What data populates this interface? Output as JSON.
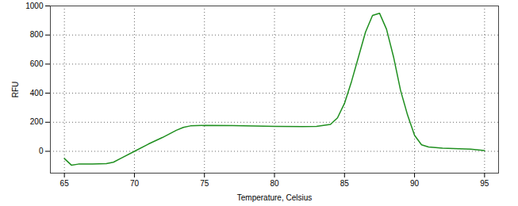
{
  "chart_data": {
    "type": "line",
    "x_label": "Temperature, Celsius",
    "y_label": "RFU",
    "x": [
      65,
      65.5,
      66,
      67,
      68,
      68.5,
      69,
      70,
      71,
      72,
      73,
      73.5,
      74,
      75,
      77,
      80,
      82,
      83,
      84,
      84.5,
      85,
      85.5,
      86,
      86.5,
      87,
      87.5,
      88,
      88.5,
      89,
      89.5,
      90,
      90.5,
      91,
      92,
      94,
      95
    ],
    "values": [
      -50,
      -95,
      -88,
      -88,
      -85,
      -75,
      -50,
      0,
      50,
      95,
      145,
      165,
      175,
      178,
      177,
      172,
      170,
      172,
      185,
      230,
      330,
      480,
      650,
      820,
      935,
      950,
      840,
      650,
      420,
      250,
      110,
      45,
      30,
      22,
      15,
      5
    ],
    "color": "#1f8f1f",
    "xlim": [
      64,
      96
    ],
    "ylim": [
      -150,
      1000
    ],
    "xticks": [
      65,
      70,
      75,
      80,
      85,
      90,
      95
    ],
    "yticks": [
      0,
      200,
      400,
      600,
      800,
      1000
    ],
    "grid": true
  }
}
